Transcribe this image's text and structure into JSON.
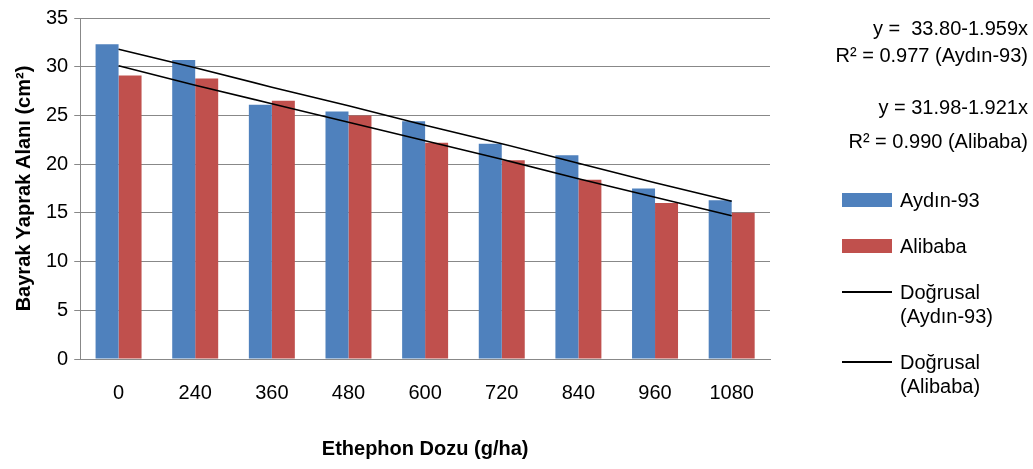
{
  "chart_data": {
    "type": "bar",
    "xlabel": "Ethephon Dozu (g/ha)",
    "ylabel": "Bayrak Yaprak Alanı (cm²)",
    "categories": [
      "0",
      "240",
      "360",
      "480",
      "600",
      "720",
      "840",
      "960",
      "1080"
    ],
    "series": [
      {
        "name": "Aydın-93",
        "color": "#4f81bd",
        "values": [
          32.3,
          30.7,
          26.1,
          25.4,
          24.4,
          22.1,
          20.9,
          17.5,
          16.3
        ]
      },
      {
        "name": "Alibaba",
        "color": "#c0504d",
        "values": [
          29.1,
          28.8,
          26.5,
          25.0,
          22.2,
          20.4,
          18.4,
          16.0,
          15.0
        ]
      },
      {
        "name": "Doğrusal (Aydın-93)",
        "type": "line",
        "color": "#000000",
        "marker": "none",
        "values": [
          31.8,
          29.9,
          27.9,
          26.0,
          24.0,
          22.1,
          20.1,
          18.1,
          16.2
        ]
      },
      {
        "name": "Doğrusal (Alibaba)",
        "type": "line",
        "color": "#000000",
        "marker": "none",
        "values": [
          30.1,
          28.1,
          26.2,
          24.3,
          22.4,
          20.5,
          18.5,
          16.6,
          14.7
        ]
      }
    ],
    "ylim": [
      0,
      35
    ],
    "yticks": [
      0,
      5,
      10,
      15,
      20,
      25,
      30,
      35
    ],
    "grid": "y",
    "legend": "right",
    "annotations": [
      "y =  33.80-1.959x",
      "R² = 0.977 (Aydın-93)",
      "y = 31.98-1.921x",
      "R² = 0.990 (Alibaba)"
    ]
  }
}
